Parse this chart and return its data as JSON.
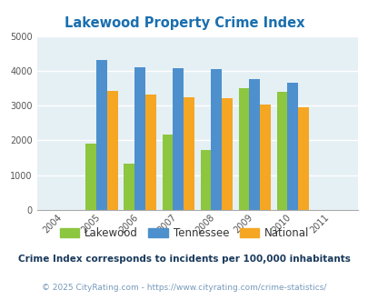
{
  "title": "Lakewood Property Crime Index",
  "all_years": [
    2004,
    2005,
    2006,
    2007,
    2008,
    2009,
    2010,
    2011
  ],
  "data_years": [
    2005,
    2006,
    2007,
    2008,
    2009,
    2010
  ],
  "lakewood": [
    1920,
    1340,
    2160,
    1720,
    3490,
    3400
  ],
  "tennessee": [
    4300,
    4100,
    4080,
    4060,
    3760,
    3650
  ],
  "national": [
    3430,
    3330,
    3230,
    3210,
    3040,
    2940
  ],
  "color_lakewood": "#8dc63f",
  "color_tennessee": "#4d90cd",
  "color_national": "#f5a623",
  "bg_color": "#e5f0f5",
  "ylim": [
    0,
    5000
  ],
  "yticks": [
    0,
    1000,
    2000,
    3000,
    4000,
    5000
  ],
  "footnote1": "Crime Index corresponds to incidents per 100,000 inhabitants",
  "footnote2": "© 2025 CityRating.com - https://www.cityrating.com/crime-statistics/",
  "legend_labels": [
    "Lakewood",
    "Tennessee",
    "National"
  ],
  "title_color": "#1a6faf",
  "footnote1_color": "#1a3a5c",
  "footnote2_color": "#7799bb",
  "bar_width": 0.28
}
